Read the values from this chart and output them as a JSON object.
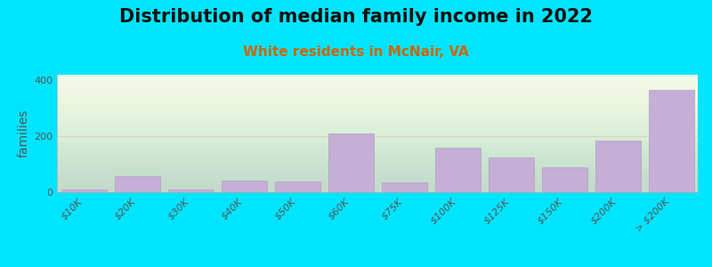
{
  "title": "Distribution of median family income in 2022",
  "subtitle": "White residents in McNair, VA",
  "ylabel": "families",
  "categories": [
    "$10K",
    "$20K",
    "$30K",
    "$40K",
    "$50K",
    "$60K",
    "$75K",
    "$100K",
    "$125K",
    "$150K",
    "$200K",
    "> $200K"
  ],
  "values": [
    10,
    58,
    8,
    40,
    38,
    210,
    35,
    160,
    125,
    90,
    185,
    365
  ],
  "bar_color": "#c5afd6",
  "bar_edge_color": "#b09ec0",
  "background_outer": "#00e5ff",
  "plot_bg_color": "#f0f8ee",
  "title_fontsize": 15,
  "subtitle_fontsize": 11,
  "subtitle_color": "#cc6600",
  "ylabel_fontsize": 10,
  "tick_fontsize": 8,
  "ylim": [
    0,
    420
  ],
  "yticks": [
    0,
    200,
    400
  ],
  "median_line_y": 200,
  "median_line_color": "#ddbbbb"
}
